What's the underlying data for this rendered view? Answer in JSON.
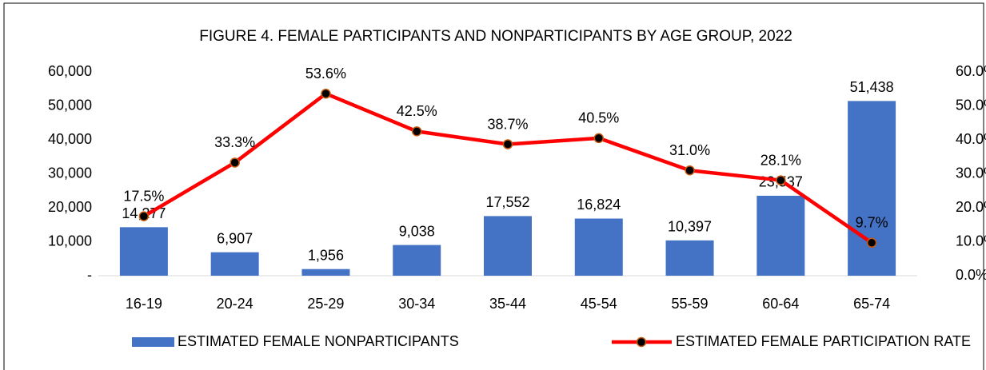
{
  "chart_data": {
    "type": "combo",
    "title": "FIGURE 4. FEMALE PARTICIPANTS AND NONPARTICIPANTS BY AGE GROUP, 2022",
    "categories": [
      "16-19",
      "20-24",
      "25-29",
      "30-34",
      "35-44",
      "45-54",
      "55-59",
      "60-64",
      "65-74"
    ],
    "series": [
      {
        "name": "ESTIMATED FEMALE NONPARTICIPANTS",
        "type": "bar",
        "color": "#4472c4",
        "values": [
          14277,
          6907,
          1956,
          9038,
          17552,
          16824,
          10397,
          23537,
          51438
        ],
        "value_labels": [
          "14,277",
          "6,907",
          "1,956",
          "9,038",
          "17,552",
          "16,824",
          "10,397",
          "23,537",
          "51,438"
        ]
      },
      {
        "name": "ESTIMATED FEMALE PARTICIPATION RATE",
        "type": "line",
        "axis": "y2",
        "color": "#ff0000",
        "marker_color": "#000000",
        "marker_edge_color": "#c55a11",
        "values": [
          17.5,
          33.3,
          53.6,
          42.5,
          38.7,
          40.5,
          31.0,
          28.1,
          9.7
        ],
        "value_labels": [
          "17.5%",
          "33.3%",
          "53.6%",
          "42.5%",
          "38.7%",
          "40.5%",
          "31.0%",
          "28.1%",
          "9.7%"
        ]
      }
    ],
    "ylim": [
      0,
      60000
    ],
    "yticks": [
      {
        "value": 0,
        "label": "-"
      },
      {
        "value": 10000,
        "label": "10,000"
      },
      {
        "value": 20000,
        "label": "20,000"
      },
      {
        "value": 30000,
        "label": "30,000"
      },
      {
        "value": 40000,
        "label": "40,000"
      },
      {
        "value": 50000,
        "label": "50,000"
      },
      {
        "value": 60000,
        "label": "60,000"
      }
    ],
    "y2lim": [
      0,
      60
    ],
    "y2ticks": [
      {
        "value": 0,
        "label": "0.0%"
      },
      {
        "value": 10,
        "label": "10.0%"
      },
      {
        "value": 20,
        "label": "20.0%"
      },
      {
        "value": 30,
        "label": "30.0%"
      },
      {
        "value": 40,
        "label": "40.0%"
      },
      {
        "value": 50,
        "label": "50.0%"
      },
      {
        "value": 60,
        "label": "60.0%"
      }
    ],
    "grid": false,
    "legend": "bottom"
  }
}
